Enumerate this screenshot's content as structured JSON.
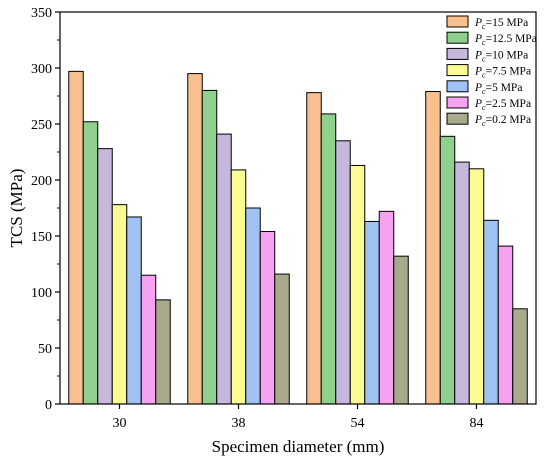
{
  "chart_data": {
    "type": "bar",
    "xlabel": "Specimen diameter (mm)",
    "ylabel": "TCS (MPa)",
    "ylim": [
      0,
      350
    ],
    "yticks": [
      0,
      50,
      100,
      150,
      200,
      250,
      300,
      350
    ],
    "categories": [
      "30",
      "38",
      "54",
      "84"
    ],
    "legend_position": "top-right",
    "grid": false,
    "series": [
      {
        "name": "15 MPa",
        "legend": {
          "sym": "P",
          "sub": "c",
          "rest": "=15 MPa"
        },
        "color": "#f9c08f",
        "values": [
          297,
          295,
          278,
          279
        ]
      },
      {
        "name": "12.5 MPa",
        "legend": {
          "sym": "P",
          "sub": "c",
          "rest": "=12.5 MPa"
        },
        "color": "#8fd08f",
        "values": [
          252,
          280,
          259,
          239
        ]
      },
      {
        "name": "10 MPa",
        "legend": {
          "sym": "P",
          "sub": "c",
          "rest": "=10 MPa"
        },
        "color": "#c6b7dc",
        "values": [
          228,
          241,
          235,
          216
        ]
      },
      {
        "name": "7.5 MPa",
        "legend": {
          "sym": "P",
          "sub": "c",
          "rest": "=7.5 MPa"
        },
        "color": "#fbfb94",
        "values": [
          178,
          209,
          213,
          210
        ]
      },
      {
        "name": "5 MPa",
        "legend": {
          "sym": "P",
          "sub": "c",
          "rest": "=5 MPa"
        },
        "color": "#9fc2f2",
        "values": [
          167,
          175,
          163,
          164
        ]
      },
      {
        "name": "2.5 MPa",
        "legend": {
          "sym": "P",
          "sub": "c",
          "rest": "=2.5 MPa"
        },
        "color": "#f5a3f0",
        "values": [
          115,
          154,
          172,
          141
        ]
      },
      {
        "name": "0.2 MPa",
        "legend": {
          "sym": "P",
          "sub": "c",
          "rest": "=0.2 MPa"
        },
        "color": "#a9a98c",
        "values": [
          93,
          116,
          132,
          85
        ]
      }
    ]
  }
}
